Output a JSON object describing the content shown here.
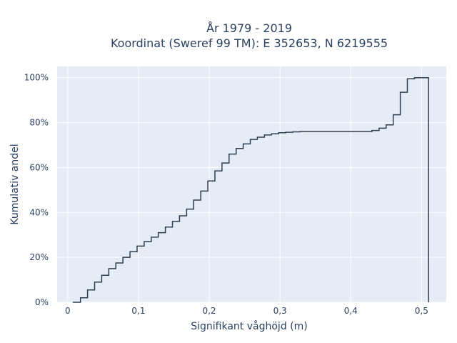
{
  "chart_data": {
    "type": "line",
    "line_shape": "step",
    "title_lines": [
      "År 1979 - 2019",
      "Koordinat (Sweref 99 TM): E 352653, N 6219555"
    ],
    "xlabel": "Signifikant våghöjd (m)",
    "ylabel": "Kumulativ andel",
    "xlim": [
      -0.015,
      0.535
    ],
    "ylim": [
      0,
      105
    ],
    "x_ticks": [
      0,
      0.1,
      0.2,
      0.3,
      0.4,
      0.5
    ],
    "x_tick_labels": [
      "0",
      "0,1",
      "0,2",
      "0,3",
      "0,4",
      "0,5"
    ],
    "y_ticks": [
      0,
      20,
      40,
      60,
      80,
      100
    ],
    "y_tick_labels": [
      "0%",
      "20%",
      "40%",
      "60%",
      "80%",
      "100%"
    ],
    "grid": true,
    "colors": {
      "plot_bg": "#e5ecf6",
      "grid": "#ffffff",
      "line": "#2f3e4e",
      "text": "#2a3f5f"
    },
    "series": [
      {
        "x": [
          0.007,
          0.018,
          0.028,
          0.038,
          0.048,
          0.058,
          0.068,
          0.078,
          0.088,
          0.098,
          0.108,
          0.118,
          0.128,
          0.138,
          0.148,
          0.158,
          0.168,
          0.178,
          0.188,
          0.198,
          0.208,
          0.218,
          0.228,
          0.238,
          0.248,
          0.258,
          0.268,
          0.278,
          0.288,
          0.298,
          0.308,
          0.318,
          0.328,
          0.38,
          0.43,
          0.44,
          0.45,
          0.46,
          0.47,
          0.48,
          0.49,
          0.51
        ],
        "y": [
          0,
          2,
          5.5,
          9,
          12,
          15,
          17.5,
          20,
          22.5,
          25,
          27,
          29,
          31,
          33.5,
          36,
          38.5,
          41.5,
          45.5,
          49.5,
          54,
          58.5,
          62,
          66,
          68.5,
          70.5,
          72.5,
          73.5,
          74.5,
          75,
          75.5,
          75.7,
          75.9,
          76,
          76,
          76.5,
          77.5,
          79,
          83.5,
          93.5,
          99.5,
          100,
          0
        ]
      }
    ]
  }
}
